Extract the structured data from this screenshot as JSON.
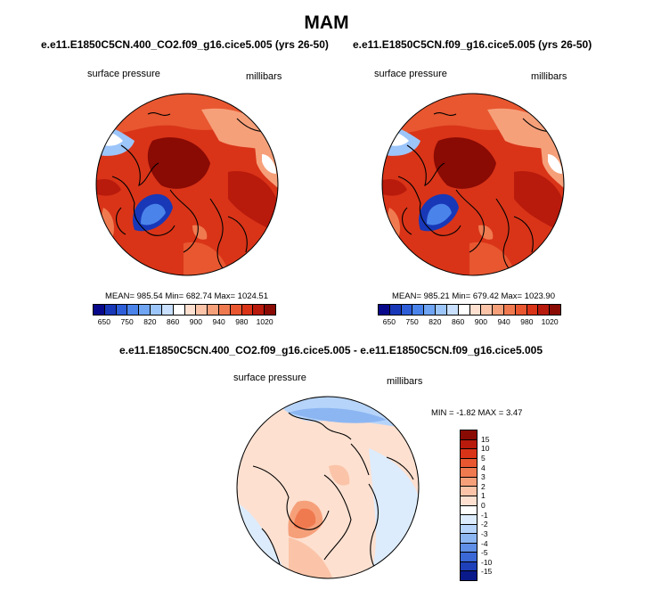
{
  "main_title": "MAM",
  "panels": [
    {
      "case": "e.e11.E1850C5CN.400_CO2.f09_g16.cice5.005 (yrs 26-50)",
      "left_label": "surface pressure",
      "right_label": "millibars",
      "stats": "MEAN= 985.54  Min= 682.74  Max= 1024.51"
    },
    {
      "case": "e.e11.E1850C5CN.f09_g16.cice5.005 (yrs 26-50)",
      "left_label": "surface pressure",
      "right_label": "millibars",
      "stats": "MEAN= 985.21  Min= 679.42  Max= 1023.90"
    }
  ],
  "diff": {
    "title": "e.e11.E1850C5CN.400_CO2.f09_g16.cice5.005 - e.e11.E1850C5CN.f09_g16.cice5.005",
    "left_label": "surface pressure",
    "right_label": "millibars",
    "stats": "MIN =  -1.82  MAX =   3.47"
  },
  "colorbar_main": {
    "colors": [
      "#08088a",
      "#1838b8",
      "#2d5ed8",
      "#4a84ea",
      "#6fa5f3",
      "#9cc5fa",
      "#c8e0fd",
      "#ffffff",
      "#fde0d0",
      "#fbc4a8",
      "#f6a07a",
      "#f07a50",
      "#e85730",
      "#d93418",
      "#b81a0c",
      "#8a0a04"
    ],
    "tick_labels": [
      "650",
      "750",
      "820",
      "860",
      "900",
      "940",
      "980",
      "1020"
    ]
  },
  "colorbar_diff": {
    "colors": [
      "#8a0a04",
      "#b81a0c",
      "#d93418",
      "#e85730",
      "#f07a50",
      "#f6a07a",
      "#fbc4a8",
      "#fde0d0",
      "#ffffff",
      "#dcecfd",
      "#b6d4fa",
      "#8cb6f2",
      "#5f8fe6",
      "#3a68d6",
      "#1e40b8",
      "#0a1a8a"
    ],
    "tick_labels": [
      "15",
      "10",
      "5",
      "4",
      "3",
      "2",
      "1",
      "0",
      "-1",
      "-2",
      "-3",
      "-4",
      "-5",
      "-10",
      "-15"
    ]
  }
}
